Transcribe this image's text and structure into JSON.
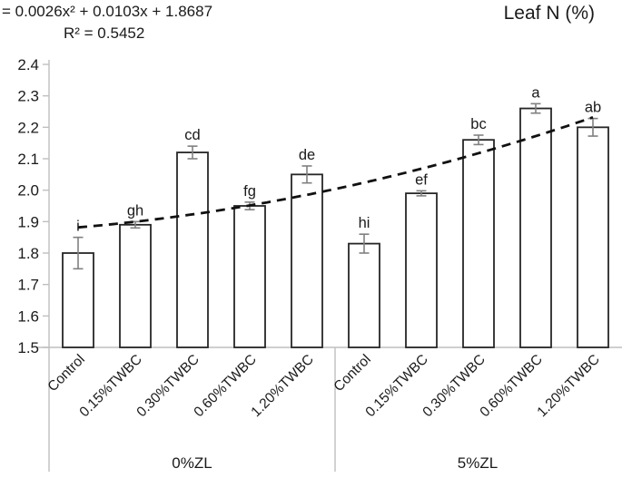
{
  "chart_data": {
    "type": "bar",
    "title": "Leaf N (%)",
    "xlabel": "",
    "ylabel": "",
    "ylim": [
      1.5,
      2.4
    ],
    "ytick_step": 0.1,
    "grid": false,
    "legend": "none",
    "groups": [
      {
        "label": "0%ZL",
        "categories": [
          "Control",
          "0.15%TWBC",
          "0.30%TWBC",
          "0.60%TWBC",
          "1.20%TWBC"
        ],
        "values": [
          1.8,
          1.89,
          2.12,
          1.95,
          2.05
        ],
        "errors": [
          0.05,
          0.01,
          0.02,
          0.012,
          0.027
        ],
        "letters": [
          "i",
          "gh",
          "cd",
          "fg",
          "de"
        ]
      },
      {
        "label": "5%ZL",
        "categories": [
          "Control",
          "0.15%TWBC",
          "0.30%TWBC",
          "0.60%TWBC",
          "1.20%TWBC"
        ],
        "values": [
          1.83,
          1.99,
          2.16,
          2.26,
          2.2
        ],
        "errors": [
          0.03,
          0.008,
          0.015,
          0.015,
          0.028
        ],
        "letters": [
          "hi",
          "ef",
          "bc",
          "a",
          "ab"
        ]
      }
    ],
    "trendline": {
      "equation": "= 0.0026x² + 0.0103x + 1.8687",
      "r2": "R² = 0.5452",
      "a": 0.0026,
      "b": 0.0103,
      "c": 1.8687,
      "style": "dashed"
    },
    "colors": {
      "bar_fill": "#ffffff",
      "bar_stroke": "#262626",
      "error_color": "#808080",
      "axis_color": "#bfbfbf",
      "trend_color": "#111111",
      "text_color": "#1a1a1a"
    }
  }
}
